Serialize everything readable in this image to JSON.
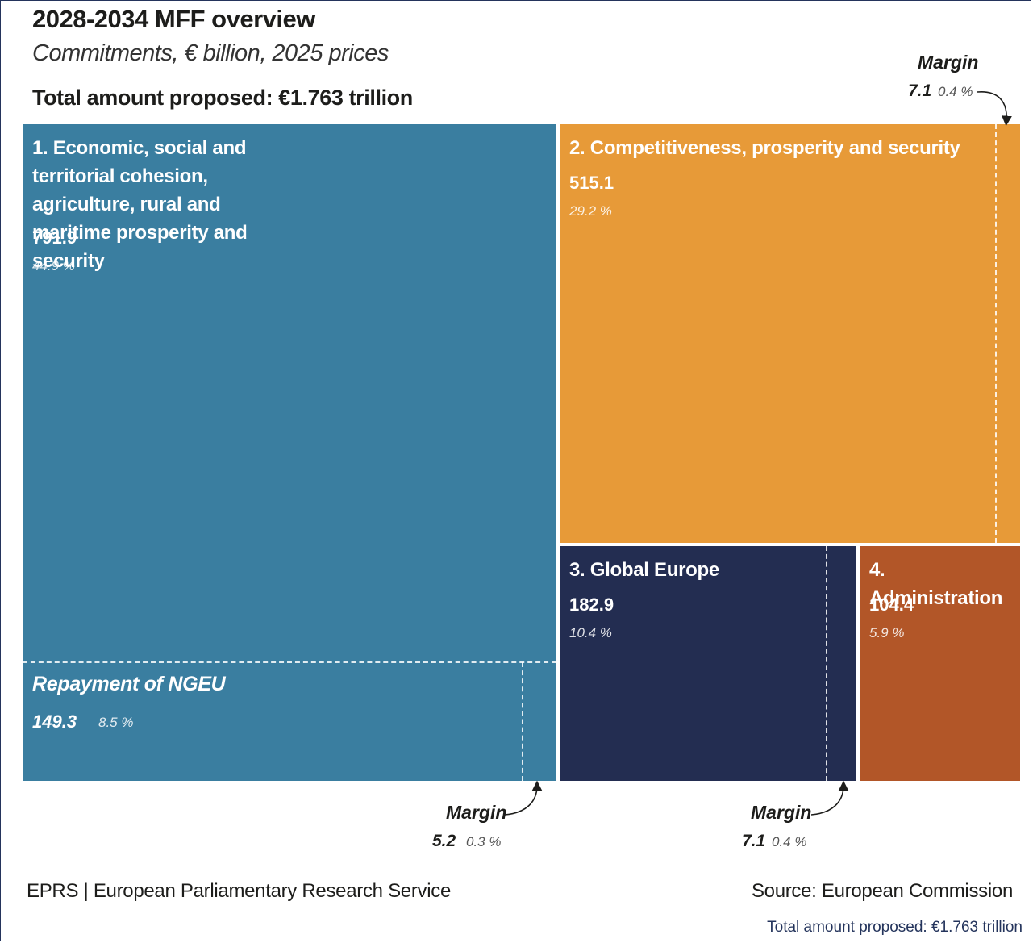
{
  "header": {
    "title": "2028-2034 MFF overview",
    "subtitle": "Commitments, € billion, 2025 prices",
    "total": "Total amount proposed: €1.763 trillion"
  },
  "chart_data": {
    "type": "treemap",
    "title": "2028-2034 MFF overview",
    "subtitle": "Commitments, € billion, 2025 prices",
    "total_label": "Total amount proposed: €1.763 trillion",
    "total_value_billion": 1763,
    "headings": [
      {
        "name": "1. Economic, social and territorial cohesion, agriculture, rural and maritime prosperity and security",
        "value": 791.9,
        "value_label": "791.9",
        "share_label": "44.9 %",
        "color": "#3a7ea0"
      },
      {
        "name": "2. Competitiveness, prosperity and security",
        "value": 515.1,
        "value_label": "515.1",
        "share_label": "29.2 %",
        "color": "#e79a38"
      },
      {
        "name": "3. Global Europe",
        "value": 182.9,
        "value_label": "182.9",
        "share_label": "10.4 %",
        "color": "#232d51"
      },
      {
        "name": "4. Administration",
        "value": 104.4,
        "value_label": "104.4",
        "share_label": "5.9 %",
        "color": "#b25628"
      }
    ],
    "sub_items": {
      "ngeu": {
        "name": "Repayment of NGEU",
        "value": 149.3,
        "value_label": "149.3",
        "share_label": "8.5 %",
        "parent": "1"
      },
      "margin_1": {
        "label": "Margin",
        "value": 5.2,
        "value_label": "5.2",
        "share_label": "0.3 %",
        "parent": "1"
      },
      "margin_2": {
        "label": "Margin",
        "value": 7.1,
        "value_label": "7.1",
        "share_label": "0.4 %",
        "parent": "2"
      },
      "margin_3": {
        "label": "Margin",
        "value": 7.1,
        "value_label": "7.1",
        "share_label": "0.4 %",
        "parent": "3"
      }
    }
  },
  "footer": {
    "left": "EPRS | European Parliamentary Research Service",
    "right": "Source: European Commission",
    "caption": "Total amount proposed: €1.763 trillion"
  }
}
